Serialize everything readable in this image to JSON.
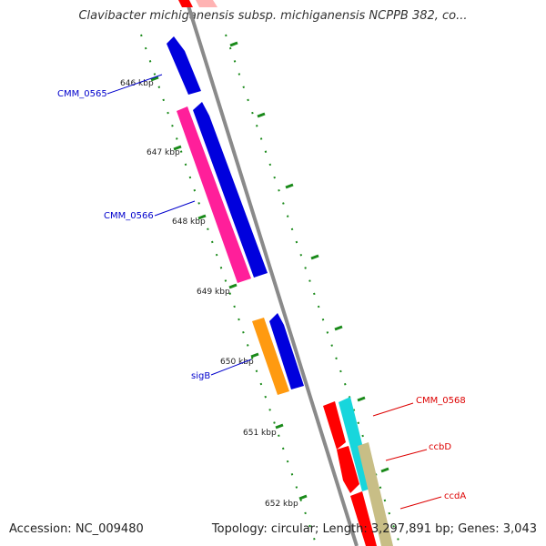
{
  "header": {
    "title": "Clavibacter michiganensis subsp. michiganensis NCPPB 382, co..."
  },
  "footer": {
    "accession": "Accession: NC_009480",
    "summary": "Topology: circular; Length: 3,297,891 bp; Genes: 3,043"
  },
  "ruler": {
    "labels": [
      "646 kbp",
      "647 kbp",
      "648 kbp",
      "649 kbp",
      "650 kbp",
      "651 kbp",
      "652 kbp"
    ]
  },
  "genes": [
    {
      "name": "CMM_0565",
      "color": "#0000cc"
    },
    {
      "name": "CMM_0566",
      "color": "#0000cc"
    },
    {
      "name": "sigB",
      "color": "#0000cc"
    },
    {
      "name": "CMM_0568",
      "color": "#dd0000"
    },
    {
      "name": "ccbD",
      "color": "#dd0000"
    },
    {
      "name": "ccdA",
      "color": "#dd0000"
    }
  ],
  "colors": {
    "backbone": "#8a8a8a",
    "ticks": "#1a8a1a",
    "feature_blue": "#0000dd",
    "feature_magenta": "#ff1f9a",
    "feature_orange": "#ff9a10",
    "feature_red": "#ff0000",
    "feature_cyan": "#17d6dc",
    "feature_khaki": "#c8be86"
  }
}
